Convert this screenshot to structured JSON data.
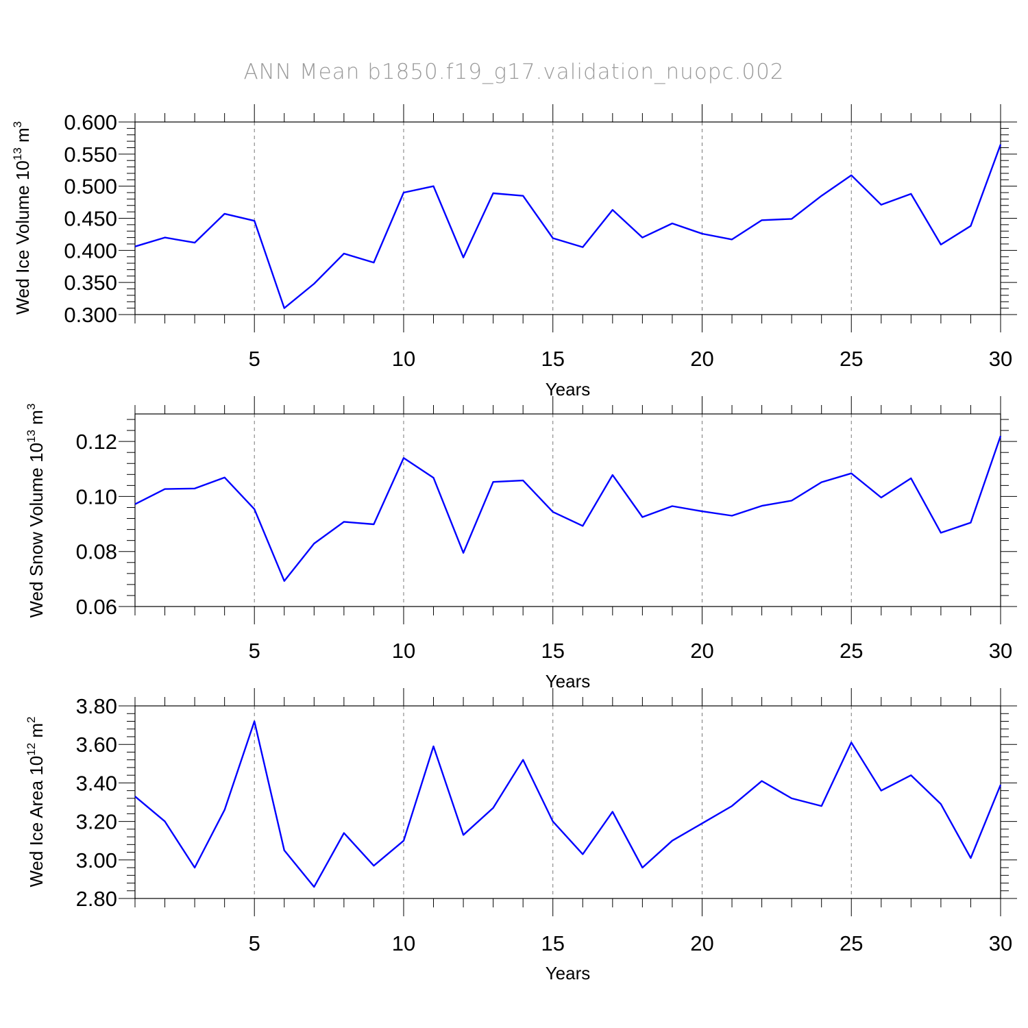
{
  "title": "ANN Mean b1850.f19_g17.validation_nuopc.002",
  "colors": {
    "line": "#0000ff",
    "title": "#9a9a9a",
    "grid": "#777777"
  },
  "chart_data": [
    {
      "type": "line",
      "ylabel_prefix": "Wed Ice Volume 10",
      "ylabel_exp": "13",
      "ylabel_unit": " m",
      "ylabel_unit_exp": "3",
      "xlabel": "Years",
      "xlim": [
        1,
        30
      ],
      "ylim": [
        0.3,
        0.6
      ],
      "yticks": [
        0.3,
        0.35,
        0.4,
        0.45,
        0.5,
        0.55,
        0.6
      ],
      "ytick_labels": [
        "0.300",
        "0.350",
        "0.400",
        "0.450",
        "0.500",
        "0.550",
        "0.600"
      ],
      "xticks": [
        5,
        10,
        15,
        20,
        25,
        30
      ],
      "xtick_labels": [
        "5",
        "10",
        "15",
        "20",
        "25",
        "30"
      ],
      "x": [
        1,
        2,
        3,
        4,
        5,
        6,
        7,
        8,
        9,
        10,
        11,
        12,
        13,
        14,
        15,
        16,
        17,
        18,
        19,
        20,
        21,
        22,
        23,
        24,
        25,
        26,
        27,
        28,
        29,
        30
      ],
      "values": [
        0.406,
        0.42,
        0.412,
        0.457,
        0.446,
        0.31,
        0.348,
        0.395,
        0.381,
        0.49,
        0.5,
        0.389,
        0.489,
        0.485,
        0.419,
        0.405,
        0.463,
        0.42,
        0.442,
        0.426,
        0.417,
        0.447,
        0.449,
        0.485,
        0.517,
        0.471,
        0.488,
        0.409,
        0.438,
        0.565
      ]
    },
    {
      "type": "line",
      "ylabel_prefix": "Wed Snow Volume 10",
      "ylabel_exp": "13",
      "ylabel_unit": " m",
      "ylabel_unit_exp": "3",
      "xlabel": "Years",
      "xlim": [
        1,
        30
      ],
      "ylim": [
        0.06,
        0.13
      ],
      "yticks": [
        0.06,
        0.08,
        0.1,
        0.12
      ],
      "ytick_labels": [
        "0.06",
        "0.08",
        "0.10",
        "0.12"
      ],
      "xticks": [
        5,
        10,
        15,
        20,
        25,
        30
      ],
      "xtick_labels": [
        "5",
        "10",
        "15",
        "20",
        "25",
        "30"
      ],
      "x": [
        1,
        2,
        3,
        4,
        5,
        6,
        7,
        8,
        9,
        10,
        11,
        12,
        13,
        14,
        15,
        16,
        17,
        18,
        19,
        20,
        21,
        22,
        23,
        24,
        25,
        26,
        27,
        28,
        29,
        30
      ],
      "values": [
        0.0972,
        0.1027,
        0.1029,
        0.1069,
        0.0954,
        0.0693,
        0.0829,
        0.0908,
        0.0899,
        0.114,
        0.1068,
        0.0795,
        0.1053,
        0.1058,
        0.0944,
        0.0893,
        0.1078,
        0.0925,
        0.0965,
        0.0946,
        0.093,
        0.0966,
        0.0985,
        0.1052,
        0.1084,
        0.0996,
        0.1066,
        0.0868,
        0.0905,
        0.122
      ]
    },
    {
      "type": "line",
      "ylabel_prefix": "Wed Ice Area 10",
      "ylabel_exp": "12",
      "ylabel_unit": " m",
      "ylabel_unit_exp": "2",
      "xlabel": "Years",
      "xlim": [
        1,
        30
      ],
      "ylim": [
        2.8,
        3.8
      ],
      "yticks": [
        2.8,
        3.0,
        3.2,
        3.4,
        3.6,
        3.8
      ],
      "ytick_labels": [
        "2.80",
        "3.00",
        "3.20",
        "3.40",
        "3.60",
        "3.80"
      ],
      "xticks": [
        5,
        10,
        15,
        20,
        25,
        30
      ],
      "xtick_labels": [
        "5",
        "10",
        "15",
        "20",
        "25",
        "30"
      ],
      "x": [
        1,
        2,
        3,
        4,
        5,
        6,
        7,
        8,
        9,
        10,
        11,
        12,
        13,
        14,
        15,
        16,
        17,
        18,
        19,
        20,
        21,
        22,
        23,
        24,
        25,
        26,
        27,
        28,
        29,
        30
      ],
      "values": [
        3.33,
        3.2,
        2.96,
        3.26,
        3.72,
        3.05,
        2.86,
        3.14,
        2.97,
        3.1,
        3.59,
        3.13,
        3.27,
        3.52,
        3.2,
        3.03,
        3.25,
        2.96,
        3.1,
        3.19,
        3.28,
        3.41,
        3.32,
        3.28,
        3.61,
        3.36,
        3.44,
        3.29,
        3.01,
        3.39
      ]
    }
  ]
}
